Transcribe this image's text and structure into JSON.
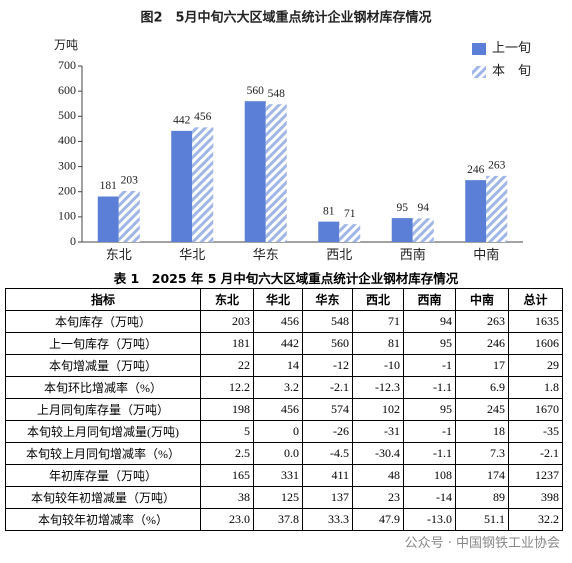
{
  "chart_data": {
    "type": "bar",
    "title": "图2　5月中旬六大区域重点统计企业钢材库存情况",
    "y_label": "万吨",
    "categories": [
      "东北",
      "华北",
      "华东",
      "西北",
      "西南",
      "中南"
    ],
    "series": [
      {
        "name": "上一旬",
        "color": "#5b7fd6",
        "values": [
          181,
          442,
          560,
          81,
          95,
          246
        ]
      },
      {
        "name": "本　旬",
        "color": "#9fb6e6",
        "pattern": "hatch",
        "values": [
          203,
          456,
          548,
          71,
          94,
          263
        ]
      }
    ],
    "ylim": [
      0,
      700
    ],
    "yticks": [
      0,
      100,
      200,
      300,
      400,
      500,
      600,
      700
    ],
    "legend": "top-right"
  },
  "table": {
    "title": "表 1　2025 年 5 月中旬六大区域重点统计企业钢材库存情况",
    "header": [
      "指标",
      "东北",
      "华北",
      "华东",
      "西北",
      "西南",
      "中南",
      "总计"
    ],
    "rows": [
      [
        "本旬库存（万吨）",
        "203",
        "456",
        "548",
        "71",
        "94",
        "263",
        "1635"
      ],
      [
        "上一旬库存（万吨）",
        "181",
        "442",
        "560",
        "81",
        "95",
        "246",
        "1606"
      ],
      [
        "本旬增减量（万吨）",
        "22",
        "14",
        "-12",
        "-10",
        "-1",
        "17",
        "29"
      ],
      [
        "本旬环比增减率（%）",
        "12.2",
        "3.2",
        "-2.1",
        "-12.3",
        "-1.1",
        "6.9",
        "1.8"
      ],
      [
        "上月同旬库存量（万吨）",
        "198",
        "456",
        "574",
        "102",
        "95",
        "245",
        "1670"
      ],
      [
        "本旬较上月同旬增减量(万吨)",
        "5",
        "0",
        "-26",
        "-31",
        "-1",
        "18",
        "-35"
      ],
      [
        "本旬较上月同旬增减率（%）",
        "2.5",
        "0.0",
        "-4.5",
        "-30.4",
        "-1.1",
        "7.3",
        "-2.1"
      ],
      [
        "年初库存量（万吨）",
        "165",
        "331",
        "411",
        "48",
        "108",
        "174",
        "1237"
      ],
      [
        "本旬较年初增减量（万吨）",
        "38",
        "125",
        "137",
        "23",
        "-14",
        "89",
        "398"
      ],
      [
        "本旬较年初增减率（%）",
        "23.0",
        "37.8",
        "33.3",
        "47.9",
        "-13.0",
        "51.1",
        "32.2"
      ]
    ]
  },
  "watermark": "公众号 · 中国钢铁工业协会"
}
